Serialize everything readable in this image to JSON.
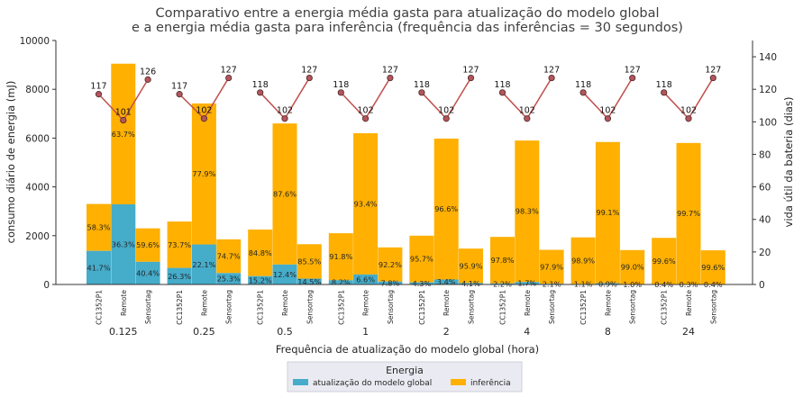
{
  "chart_data": {
    "type": "bar",
    "title_lines": [
      "Comparativo entre a energia média gasta para atualização do modelo global",
      "e a energia média gasta para inferência (frequência das inferências = 30 segundos)"
    ],
    "xlabel": "Frequência de atualização do modelo global (hora)",
    "ylabel": "consumo diário de energia (mJ)",
    "ylabel_right": "vida útil da bateria (dias)",
    "ylim": [
      0,
      10000
    ],
    "yticks": [
      "0",
      "2000",
      "4000",
      "6000",
      "8000",
      "10000"
    ],
    "ylim_right": [
      0,
      150
    ],
    "yticks_right": [
      "0",
      "20",
      "40",
      "60",
      "80",
      "100",
      "120",
      "140"
    ],
    "groups": [
      "0.125",
      "0.25",
      "0.5",
      "1",
      "2",
      "4",
      "8",
      "24"
    ],
    "devices": [
      "CC1352P1",
      "Remote",
      "Sensortag"
    ],
    "stack_series": [
      {
        "name": "atualização do modelo global",
        "color": "#45acca"
      },
      {
        "name": "inferência",
        "color": "#ffb000"
      }
    ],
    "bars": [
      [
        {
          "total": 3300,
          "update_pct": "41.7%",
          "inf_pct": "58.3%"
        },
        {
          "total": 9050,
          "update_pct": "36.3%",
          "inf_pct": "63.7%"
        },
        {
          "total": 2300,
          "update_pct": "40.4%",
          "inf_pct": "59.6%"
        }
      ],
      [
        {
          "total": 2580,
          "update_pct": "26.3%",
          "inf_pct": "73.7%"
        },
        {
          "total": 7420,
          "update_pct": "22.1%",
          "inf_pct": "77.9%"
        },
        {
          "total": 1850,
          "update_pct": "25.3%",
          "inf_pct": "74.7%"
        }
      ],
      [
        {
          "total": 2250,
          "update_pct": "15.2%",
          "inf_pct": "84.8%"
        },
        {
          "total": 6600,
          "update_pct": "12.4%",
          "inf_pct": "87.6%"
        },
        {
          "total": 1650,
          "update_pct": "14.5%",
          "inf_pct": "85.5%"
        }
      ],
      [
        {
          "total": 2100,
          "update_pct": "8.2%",
          "inf_pct": "91.8%"
        },
        {
          "total": 6200,
          "update_pct": "6.6%",
          "inf_pct": "93.4%"
        },
        {
          "total": 1520,
          "update_pct": "7.8%",
          "inf_pct": "92.2%"
        }
      ],
      [
        {
          "total": 2000,
          "update_pct": "4.3%",
          "inf_pct": "95.7%"
        },
        {
          "total": 5980,
          "update_pct": "3.4%",
          "inf_pct": "96.6%"
        },
        {
          "total": 1470,
          "update_pct": "4.1%",
          "inf_pct": "95.9%"
        }
      ],
      [
        {
          "total": 1950,
          "update_pct": "2.2%",
          "inf_pct": "97.8%"
        },
        {
          "total": 5900,
          "update_pct": "1.7%",
          "inf_pct": "98.3%"
        },
        {
          "total": 1420,
          "update_pct": "2.1%",
          "inf_pct": "97.9%"
        }
      ],
      [
        {
          "total": 1930,
          "update_pct": "1.1%",
          "inf_pct": "98.9%"
        },
        {
          "total": 5840,
          "update_pct": "0.9%",
          "inf_pct": "99.1%"
        },
        {
          "total": 1410,
          "update_pct": "1.0%",
          "inf_pct": "99.0%"
        }
      ],
      [
        {
          "total": 1910,
          "update_pct": "0.4%",
          "inf_pct": "99.6%"
        },
        {
          "total": 5800,
          "update_pct": "0.3%",
          "inf_pct": "99.7%"
        },
        {
          "total": 1400,
          "update_pct": "0.4%",
          "inf_pct": "99.6%"
        }
      ]
    ],
    "battery_life_days": [
      [
        117,
        101,
        126
      ],
      [
        117,
        102,
        127
      ],
      [
        118,
        102,
        127
      ],
      [
        118,
        102,
        127
      ],
      [
        118,
        102,
        127
      ],
      [
        118,
        102,
        127
      ],
      [
        118,
        102,
        127
      ],
      [
        118,
        102,
        127
      ]
    ],
    "line_color": "#c0504d",
    "marker_color": "#b5545c",
    "legend": {
      "title": "Energia",
      "position": "bottom-center",
      "entries": [
        "atualização do modelo global",
        "inferência"
      ]
    },
    "grid": false
  }
}
